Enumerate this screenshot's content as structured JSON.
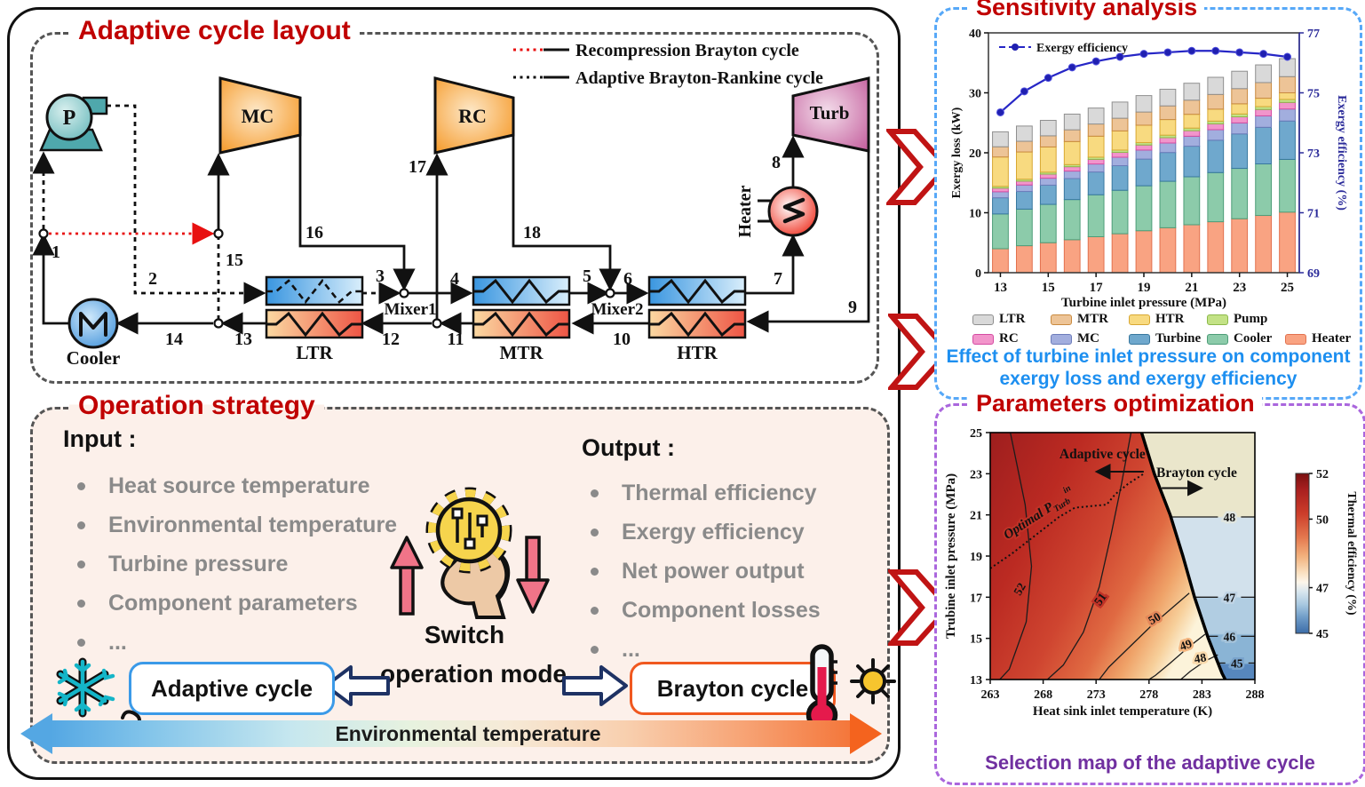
{
  "layout_panel": {
    "title": "Adaptive cycle layout",
    "legend": [
      {
        "label": "Recompression Brayton cycle",
        "line": "red-dotted-solid"
      },
      {
        "label": "Adaptive Brayton-Rankine cycle",
        "line": "black-dotted-solid"
      }
    ],
    "components": {
      "pump": "P",
      "mc": "MC",
      "rc": "RC",
      "turb": "Turb",
      "heater": "Heater",
      "cooler": "Cooler",
      "ltr": "LTR",
      "mtr": "MTR",
      "htr": "HTR",
      "mixer1": "Mixer1",
      "mixer2": "Mixer2"
    },
    "streams": [
      "1",
      "2",
      "3",
      "4",
      "5",
      "6",
      "7",
      "8",
      "9",
      "10",
      "11",
      "12",
      "13",
      "14",
      "15",
      "16",
      "17",
      "18"
    ]
  },
  "strategy_panel": {
    "title": "Operation strategy",
    "input_heading": "Input :",
    "inputs": [
      "Heat source temperature",
      "Environmental temperature",
      "Turbine pressure",
      "Component parameters",
      "..."
    ],
    "output_heading": "Output :",
    "outputs": [
      "Thermal efficiency",
      "Exergy efficiency",
      "Net power output",
      "Component losses",
      "..."
    ],
    "switch_line1": "Switch",
    "switch_line2": "operation mode",
    "adaptive_label": "Adaptive cycle",
    "brayton_label": "Brayton cycle",
    "axis_label": "Environmental temperature"
  },
  "sensitivity_panel": {
    "title": "Sensitivity analysis",
    "caption_line1": "Effect of turbine inlet pressure on component",
    "caption_line2": "exergy loss and exergy efficiency"
  },
  "optimization_panel": {
    "title": "Parameters optimization",
    "caption": "Selection map of the adaptive cycle"
  },
  "chart_data": [
    {
      "type": "bar",
      "stacked": true,
      "x": [
        13,
        14,
        15,
        16,
        17,
        18,
        19,
        20,
        21,
        22,
        23,
        24,
        25
      ],
      "xticks_labeled": [
        13,
        15,
        17,
        19,
        21,
        23,
        25
      ],
      "xlabel": "Turbine inlet pressure (MPa)",
      "ylabel_left": "Exergy loss (kW)",
      "ylim_left": [
        0,
        40
      ],
      "yticks_left": [
        0,
        10,
        20,
        30,
        40
      ],
      "ylabel_right": "Exergy efficiency (%)",
      "ylim_right": [
        69,
        77
      ],
      "yticks_right": [
        69,
        71,
        73,
        75,
        77
      ],
      "series": [
        {
          "name": "Heater",
          "fill": "#f9a382",
          "edge": "#e2714e",
          "values": [
            4.0,
            4.5,
            5.0,
            5.5,
            6.0,
            6.5,
            7.0,
            7.5,
            8.0,
            8.5,
            9.0,
            9.55,
            10.1
          ]
        },
        {
          "name": "Cooler",
          "fill": "#8ccbaa",
          "edge": "#4d9d78",
          "values": [
            5.8,
            6.1,
            6.4,
            6.7,
            7.0,
            7.25,
            7.5,
            7.75,
            8.0,
            8.2,
            8.4,
            8.6,
            8.8
          ]
        },
        {
          "name": "Turbine",
          "fill": "#6fa8cd",
          "edge": "#38789f",
          "values": [
            2.7,
            2.95,
            3.2,
            3.5,
            3.8,
            4.1,
            4.45,
            4.8,
            5.1,
            5.4,
            5.75,
            6.1,
            6.4
          ]
        },
        {
          "name": "MC",
          "fill": "#a2aede",
          "edge": "#6c7cba",
          "values": [
            1.0,
            1.08,
            1.16,
            1.25,
            1.33,
            1.41,
            1.5,
            1.58,
            1.66,
            1.75,
            1.83,
            1.91,
            2.0
          ]
        },
        {
          "name": "RC",
          "fill": "#f295cb",
          "edge": "#d44ba2",
          "values": [
            0.6,
            0.64,
            0.68,
            0.73,
            0.77,
            0.81,
            0.85,
            0.89,
            0.93,
            0.98,
            1.02,
            1.06,
            1.1
          ]
        },
        {
          "name": "Pump",
          "fill": "#c3e286",
          "edge": "#8cb94a",
          "values": [
            0.3,
            0.32,
            0.33,
            0.35,
            0.37,
            0.38,
            0.4,
            0.42,
            0.43,
            0.45,
            0.47,
            0.48,
            0.5
          ]
        },
        {
          "name": "HTR",
          "fill": "#f8da80",
          "edge": "#d8a833",
          "values": [
            4.9,
            4.55,
            4.2,
            3.85,
            3.5,
            3.2,
            2.9,
            2.6,
            2.3,
            2.0,
            1.7,
            1.4,
            1.1
          ]
        },
        {
          "name": "MTR",
          "fill": "#edc497",
          "edge": "#c98a3f",
          "values": [
            1.7,
            1.78,
            1.86,
            1.95,
            2.03,
            2.11,
            2.2,
            2.28,
            2.36,
            2.45,
            2.53,
            2.61,
            2.7
          ]
        },
        {
          "name": "LTR",
          "fill": "#d9d9d9",
          "edge": "#8f8f8f",
          "values": [
            2.5,
            2.54,
            2.58,
            2.62,
            2.66,
            2.7,
            2.74,
            2.78,
            2.82,
            2.86,
            2.9,
            2.95,
            3.0
          ]
        }
      ],
      "line_series": {
        "name": "Exergy efficiency",
        "color": "#2626c6",
        "values": [
          74.35,
          75.05,
          75.5,
          75.85,
          76.05,
          76.2,
          76.3,
          76.35,
          76.4,
          76.4,
          76.35,
          76.3,
          76.2
        ]
      },
      "legend_rows": [
        [
          "LTR",
          "MTR",
          "HTR",
          "Pump"
        ],
        [
          "RC",
          "MC",
          "Turbine",
          "Cooler",
          "Heater"
        ]
      ]
    },
    {
      "type": "heatmap",
      "xlabel": "Heat sink inlet temperature (K)",
      "ylabel": "Trubine inlet pressure (MPa)",
      "xlim": [
        263,
        288
      ],
      "ylim": [
        13,
        25
      ],
      "xticks": [
        263,
        268,
        273,
        278,
        283,
        288
      ],
      "yticks": [
        13,
        15,
        17,
        19,
        21,
        23,
        25
      ],
      "colorbar": {
        "label": "Thermal efficiency (%)",
        "ticks": [
          52,
          50,
          47,
          45
        ],
        "vmin": 45,
        "vmax": 52
      },
      "regions": [
        {
          "label": "Adaptive cycle",
          "x": 273.6,
          "y": 23.75,
          "arrow": {
            "x1": 277.5,
            "y1": 23.1,
            "x2": 273.2,
            "y2": 23.1
          }
        },
        {
          "label": "Brayton cycle",
          "x": 282.5,
          "y": 22.85,
          "arrow": {
            "x1": 279.2,
            "y1": 22.3,
            "x2": 282.8,
            "y2": 22.3
          }
        }
      ],
      "boundary": [
        [
          277.3,
          25
        ],
        [
          278.5,
          23
        ],
        [
          280.0,
          21
        ],
        [
          281.2,
          19
        ],
        [
          282.3,
          17
        ],
        [
          283.6,
          15
        ],
        [
          284.9,
          13.3
        ],
        [
          285.2,
          13
        ]
      ],
      "optimal_line": {
        "points": [
          [
            263,
            18.4
          ],
          [
            265,
            19.1
          ],
          [
            267.5,
            20.1
          ],
          [
            269.5,
            20.9
          ],
          [
            271,
            21.35
          ],
          [
            274,
            21.5
          ],
          [
            274.8,
            22.0
          ],
          [
            276,
            22.5
          ],
          [
            277.5,
            23.0
          ]
        ],
        "label": {
          "base": "Optimal P",
          "sub": "Turb",
          "sup": "in",
          "x": 264.6,
          "y": 19.8,
          "angle": -33
        }
      },
      "contours_left": [
        {
          "label": "52",
          "lx": 266.1,
          "ly": 17.3,
          "angle": -60,
          "halo": "#c03227",
          "points": [
            [
              264.9,
              25
            ],
            [
              266.3,
              21.5
            ],
            [
              266.9,
              18.5
            ],
            [
              266.4,
              15.8
            ],
            [
              264.8,
              13.5
            ],
            [
              263.9,
              13
            ]
          ]
        },
        {
          "label": "51",
          "lx": 273.7,
          "ly": 16.8,
          "angle": -55,
          "halo": "#c03227",
          "points": [
            [
              276.3,
              25
            ],
            [
              275.4,
              22.5
            ],
            [
              274.4,
              20
            ],
            [
              273.3,
              17.5
            ],
            [
              271.8,
              15.3
            ],
            [
              269.9,
              13.7
            ],
            [
              268.4,
              13
            ]
          ]
        },
        {
          "label": "50",
          "lx": 278.7,
          "ly": 15.8,
          "angle": -30,
          "halo": "#e5885a",
          "points": [
            [
              281.8,
              17.2
            ],
            [
              280.0,
              16.4
            ],
            [
              278.2,
              15.6
            ],
            [
              276.0,
              14.5
            ],
            [
              274.2,
              13.6
            ],
            [
              273.3,
              13
            ]
          ]
        },
        {
          "label": "49",
          "lx": 281.6,
          "ly": 14.5,
          "angle": -20,
          "halo": "#f3b57f",
          "points": [
            [
              283.3,
              15.2
            ],
            [
              281.8,
              14.6
            ],
            [
              280.0,
              13.8
            ],
            [
              278.6,
              13.2
            ],
            [
              278.0,
              13
            ]
          ]
        },
        {
          "label": "48",
          "lx": 282.9,
          "ly": 13.85,
          "angle": -10,
          "halo": "#f9d9ab",
          "points": [
            [
              284.5,
              14.2
            ],
            [
              283.3,
              13.9
            ],
            [
              281.9,
              13.4
            ],
            [
              281.0,
              13
            ]
          ]
        }
      ],
      "contours_right": [
        {
          "label": "48",
          "y": 20.9,
          "lx": 285.6,
          "halo": "#dfe5e0"
        },
        {
          "label": "47",
          "y": 17.0,
          "lx": 285.6,
          "halo": "#c0d4e5"
        },
        {
          "label": "46",
          "y": 15.1,
          "lx": 285.6,
          "halo": "#a3c2da"
        },
        {
          "label": "45",
          "y": 13.8,
          "lx": 286.3,
          "halo": "#79a3cc"
        }
      ]
    }
  ]
}
